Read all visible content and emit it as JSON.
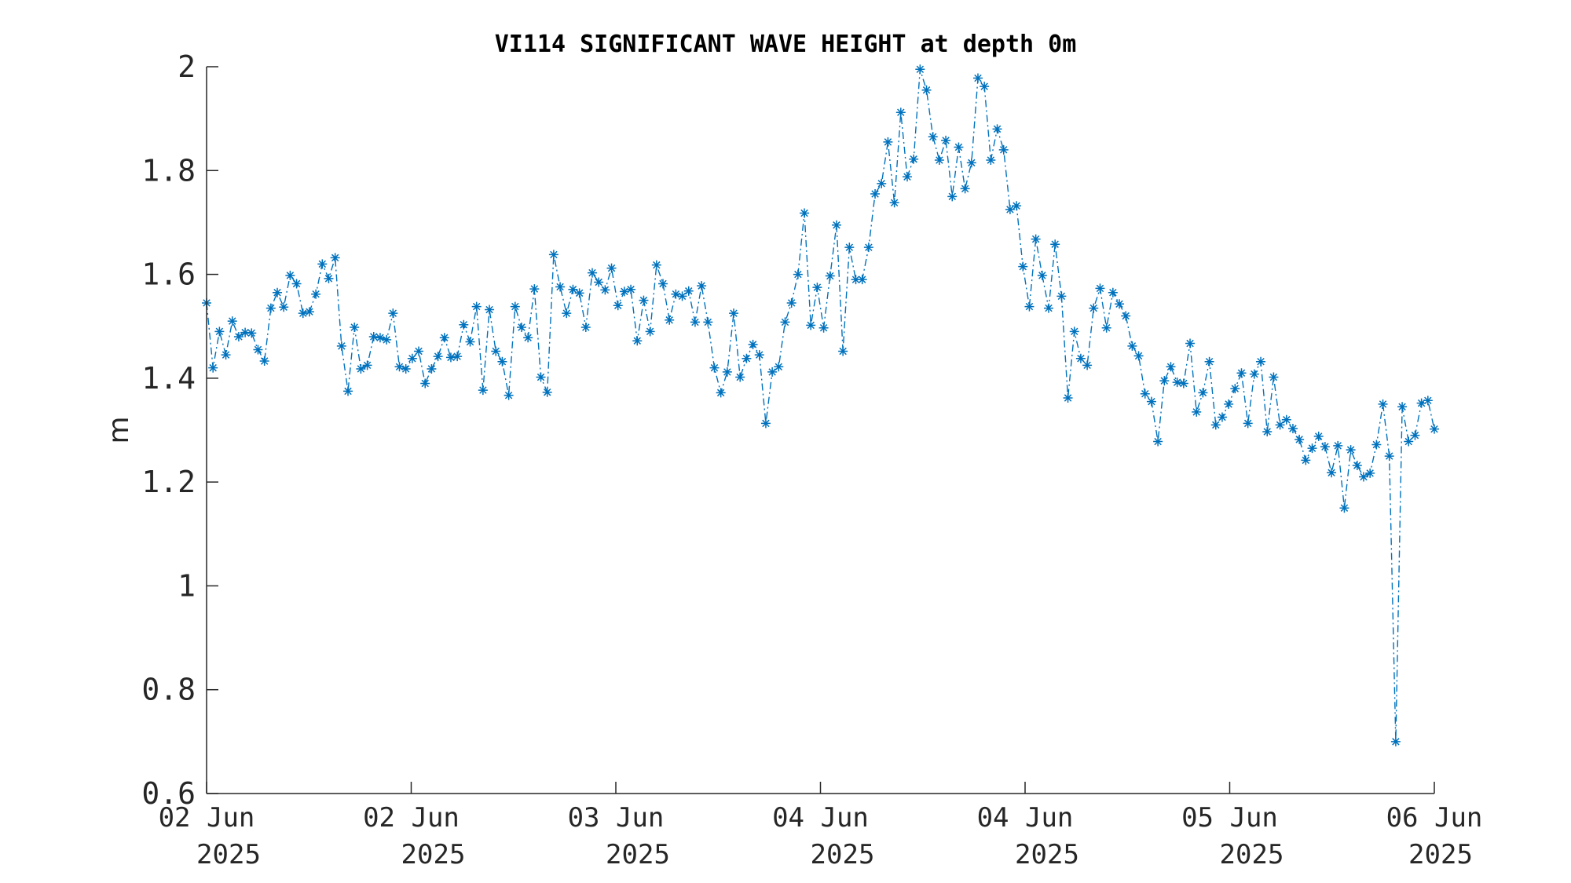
{
  "chart_data": {
    "type": "line",
    "title": "VI114 SIGNIFICANT WAVE HEIGHT at depth 0m",
    "ylabel": "m",
    "xlabel": "",
    "ylim": [
      0.6,
      2.0
    ],
    "yticks": [
      "0.6",
      "0.8",
      "1",
      "1.2",
      "1.4",
      "1.6",
      "1.8",
      "2"
    ],
    "yticks_values": [
      0.6,
      0.8,
      1.0,
      1.2,
      1.4,
      1.6,
      1.8,
      2.0
    ],
    "xticks": [
      {
        "line1": "02 Jun",
        "line2": "2025"
      },
      {
        "line1": "02 Jun",
        "line2": "2025"
      },
      {
        "line1": "03 Jun",
        "line2": "2025"
      },
      {
        "line1": "04 Jun",
        "line2": "2025"
      },
      {
        "line1": "04 Jun",
        "line2": "2025"
      },
      {
        "line1": "05 Jun",
        "line2": "2025"
      },
      {
        "line1": "06 Jun",
        "line2": "2025"
      }
    ],
    "series": [
      {
        "color": "#0072BD",
        "marker": "asterisk",
        "linestyle": "dash-dot",
        "values": [
          1.545,
          1.42,
          1.49,
          1.445,
          1.51,
          1.48,
          1.488,
          1.487,
          1.455,
          1.433,
          1.535,
          1.565,
          1.537,
          1.598,
          1.582,
          1.525,
          1.528,
          1.562,
          1.62,
          1.592,
          1.632,
          1.462,
          1.375,
          1.498,
          1.418,
          1.425,
          1.48,
          1.478,
          1.474,
          1.525,
          1.422,
          1.418,
          1.438,
          1.452,
          1.39,
          1.418,
          1.442,
          1.478,
          1.44,
          1.442,
          1.503,
          1.47,
          1.538,
          1.377,
          1.532,
          1.452,
          1.432,
          1.367,
          1.538,
          1.498,
          1.478,
          1.572,
          1.402,
          1.373,
          1.638,
          1.576,
          1.525,
          1.571,
          1.564,
          1.498,
          1.603,
          1.585,
          1.57,
          1.612,
          1.54,
          1.567,
          1.571,
          1.472,
          1.55,
          1.49,
          1.618,
          1.582,
          1.512,
          1.562,
          1.558,
          1.568,
          1.508,
          1.578,
          1.508,
          1.42,
          1.372,
          1.412,
          1.525,
          1.402,
          1.438,
          1.465,
          1.445,
          1.313,
          1.412,
          1.422,
          1.508,
          1.545,
          1.6,
          1.718,
          1.502,
          1.575,
          1.497,
          1.597,
          1.695,
          1.452,
          1.652,
          1.59,
          1.59,
          1.652,
          1.755,
          1.775,
          1.855,
          1.738,
          1.912,
          1.788,
          1.822,
          1.995,
          1.955,
          1.865,
          1.82,
          1.858,
          1.75,
          1.845,
          1.765,
          1.815,
          1.978,
          1.962,
          1.82,
          1.88,
          1.84,
          1.725,
          1.732,
          1.615,
          1.538,
          1.668,
          1.598,
          1.535,
          1.658,
          1.558,
          1.362,
          1.49,
          1.438,
          1.425,
          1.535,
          1.573,
          1.497,
          1.565,
          1.543,
          1.52,
          1.462,
          1.443,
          1.37,
          1.355,
          1.278,
          1.395,
          1.422,
          1.392,
          1.39,
          1.467,
          1.335,
          1.372,
          1.432,
          1.31,
          1.325,
          1.35,
          1.38,
          1.41,
          1.313,
          1.408,
          1.432,
          1.297,
          1.402,
          1.31,
          1.32,
          1.303,
          1.282,
          1.242,
          1.265,
          1.288,
          1.268,
          1.218,
          1.27,
          1.15,
          1.262,
          1.232,
          1.21,
          1.217,
          1.272,
          1.35,
          1.25,
          0.7,
          1.345,
          1.278,
          1.29,
          1.352,
          1.357,
          1.302
        ]
      }
    ]
  }
}
